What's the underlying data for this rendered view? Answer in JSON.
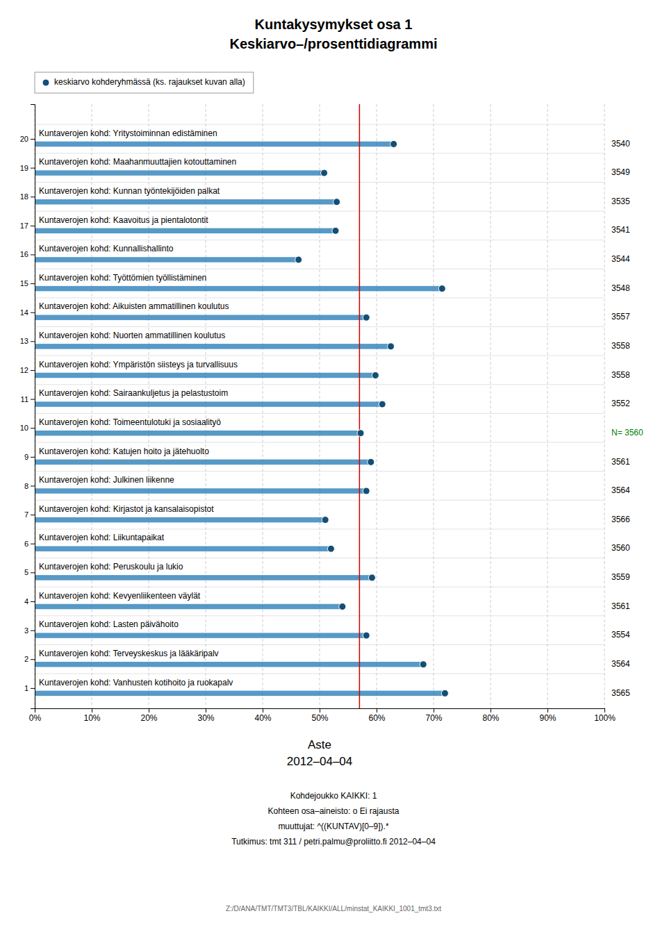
{
  "chart_data": {
    "type": "bar",
    "orientation": "horizontal",
    "title": "Kuntakysymykset osa 1",
    "subtitle": "Keskiarvo–/prosenttidiagrammi",
    "xlabel": [
      "Aste",
      "2012–04–04"
    ],
    "categories": [
      "Kuntaverojen kohd: Yritystoiminnan edistäminen",
      "Kuntaverojen kohd: Maahanmuuttajien kotouttaminen",
      "Kuntaverojen kohd: Kunnan työntekijöiden palkat",
      "Kuntaverojen kohd: Kaavoitus ja pientalotontit",
      "Kuntaverojen kohd: Kunnallishallinto",
      "Kuntaverojen kohd: Työttömien työllistäminen",
      "Kuntaverojen kohd: Aikuisten ammatillinen koulutus",
      "Kuntaverojen kohd: Nuorten ammatillinen koulutus",
      "Kuntaverojen kohd: Ympäristön siisteys ja turvallisuus",
      "Kuntaverojen kohd: Sairaankuljetus ja pelastustoim",
      "Kuntaverojen kohd: Toimeentulotuki ja sosiaalityö",
      "Kuntaverojen kohd: Katujen hoito ja jätehuolto",
      "Kuntaverojen kohd: Julkinen liikenne",
      "Kuntaverojen kohd: Kirjastot ja kansalaisopistot",
      "Kuntaverojen kohd: Liikuntapaikat",
      "Kuntaverojen kohd: Peruskoulu ja lukio",
      "Kuntaverojen kohd: Kevyenliikenteen väylät",
      "Kuntaverojen kohd: Lasten päivähoito",
      "Kuntaverojen kohd: Terveyskeskus ja lääkäripalv",
      "Kuntaverojen kohd: Vanhusten kotihoito ja ruokapalv"
    ],
    "y": [
      20,
      19,
      18,
      17,
      16,
      15,
      14,
      13,
      12,
      11,
      10,
      9,
      8,
      7,
      6,
      5,
      4,
      3,
      2,
      1
    ],
    "series": [
      {
        "name": "keskiarvo kohderyhmässä (ks. rajaukset kuvan alla)",
        "values": [
          0.63,
          0.508,
          0.53,
          0.528,
          0.463,
          0.715,
          0.582,
          0.625,
          0.598,
          0.61,
          0.572,
          0.59,
          0.582,
          0.51,
          0.52,
          0.592,
          0.54,
          0.582,
          0.682,
          0.72
        ]
      }
    ],
    "n_labels": [
      "3540",
      "3549",
      "3535",
      "3541",
      "3544",
      "3548",
      "3557",
      "3558",
      "3558",
      "3552",
      "N= 3560",
      "3561",
      "3564",
      "3566",
      "3560",
      "3559",
      "3561",
      "3554",
      "3564",
      "3565"
    ],
    "n_label_colors": [
      "#000000",
      "#000000",
      "#000000",
      "#000000",
      "#000000",
      "#000000",
      "#000000",
      "#000000",
      "#000000",
      "#000000",
      "#008000",
      "#000000",
      "#000000",
      "#000000",
      "#000000",
      "#000000",
      "#000000",
      "#000000",
      "#000000",
      "#000000"
    ],
    "reference_line": {
      "value": 0.57,
      "color": "#cc0000"
    },
    "xlim": [
      0.0,
      1.0
    ],
    "xticks": [
      {
        "value": 0.0,
        "label": "0%"
      },
      {
        "value": 0.1,
        "label": "10%"
      },
      {
        "value": 0.2,
        "label": "20%"
      },
      {
        "value": 0.3,
        "label": "30%"
      },
      {
        "value": 0.4,
        "label": "40%"
      },
      {
        "value": 0.5,
        "label": "50%"
      },
      {
        "value": 0.6,
        "label": "60%"
      },
      {
        "value": 0.7,
        "label": "70%"
      },
      {
        "value": 0.8,
        "label": "80%"
      },
      {
        "value": 0.9,
        "label": "90%"
      },
      {
        "value": 1.0,
        "label": "100%"
      }
    ],
    "ylim": [
      0.3,
      21.2
    ],
    "yticks": [
      1,
      2,
      3,
      4,
      5,
      6,
      7,
      8,
      9,
      10,
      11,
      12,
      13,
      14,
      15,
      16,
      17,
      18,
      19,
      20
    ],
    "grid": true,
    "legend": "top-left",
    "footer": [
      "Kohdejoukko KAIKKI: 1",
      "Kohteen osa–aineisto: o Ei rajausta",
      "muuttujat: ^((KUNTAV)[0–9]).*",
      "Tutkimus: tmt 311 / petri.palmu@proliitto.fi 2012–04–04"
    ],
    "footer_small": "Z:/D/ANA/TMT/TMT3/TBL/KAIKKI/ALL/minstat_KAIKKI_1001_tmt3.txt"
  }
}
